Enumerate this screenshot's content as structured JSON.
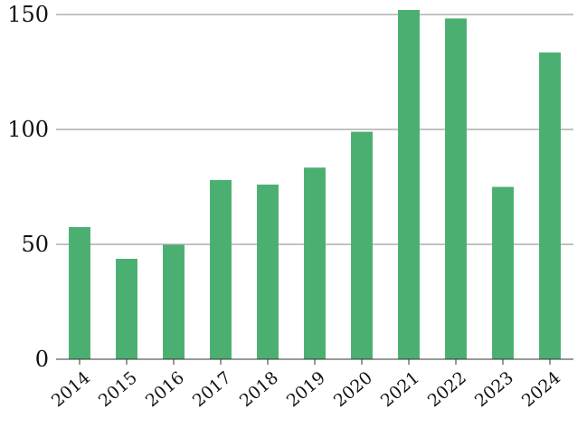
{
  "chart_data": {
    "type": "bar",
    "title": "",
    "xlabel": "",
    "ylabel": "",
    "categories": [
      "2014",
      "2015",
      "2016",
      "2017",
      "2018",
      "2019",
      "2020",
      "2021",
      "2022",
      "2023",
      "2024"
    ],
    "values": [
      57.5,
      43.7,
      49.8,
      78.0,
      76.0,
      83.4,
      99.0,
      152.0,
      148.3,
      75.0,
      133.5
    ],
    "ylim": [
      0,
      152
    ],
    "yticks": [
      "0",
      "50",
      "100",
      "150"
    ],
    "grid": true,
    "legend": "none",
    "bar_color": "#4caf72"
  }
}
